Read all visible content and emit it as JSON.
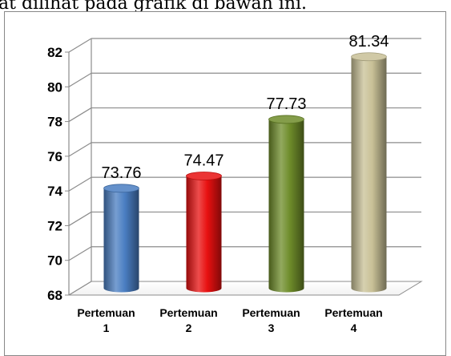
{
  "caption": "at dilihat pada grafik di bawah ini.",
  "chart_data": {
    "type": "bar",
    "style": "3d-cylinder",
    "categories": [
      "Pertemuan 1",
      "Pertemuan 2",
      "Pertemuan 3",
      "Pertemuan 4"
    ],
    "category_lines": [
      [
        "Pertemuan",
        "1"
      ],
      [
        "Pertemuan",
        "2"
      ],
      [
        "Pertemuan",
        "3"
      ],
      [
        "Pertemuan",
        "4"
      ]
    ],
    "values": [
      73.76,
      74.47,
      77.73,
      81.34
    ],
    "value_labels": [
      "73.76",
      "74.47",
      "77.73",
      "81.34"
    ],
    "colors": [
      "#4a7ec2",
      "#e81010",
      "#6e8c2a",
      "#c8c096"
    ],
    "ylim": [
      68,
      82
    ],
    "yticks": [
      68,
      70,
      72,
      74,
      76,
      78,
      80,
      82
    ],
    "ytick_labels": [
      "68",
      "70",
      "72",
      "74",
      "76",
      "78",
      "80",
      "82"
    ],
    "grid": true,
    "legend": false,
    "title": "",
    "xlabel": "",
    "ylabel": ""
  }
}
